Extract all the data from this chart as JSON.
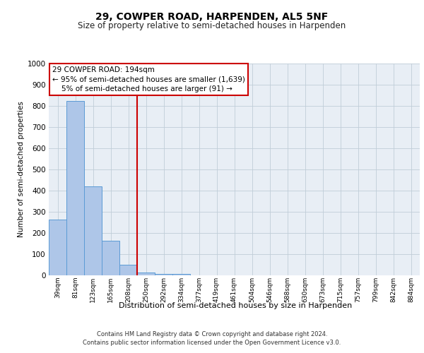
{
  "title1": "29, COWPER ROAD, HARPENDEN, AL5 5NF",
  "title2": "Size of property relative to semi-detached houses in Harpenden",
  "xlabel": "Distribution of semi-detached houses by size in Harpenden",
  "ylabel": "Number of semi-detached properties",
  "bar_color": "#aec6e8",
  "bar_edge_color": "#5b9bd5",
  "vline_color": "#cc0000",
  "vline_x_index": 4.5,
  "annotation_line1": "29 COWPER ROAD: 194sqm",
  "annotation_line2": "← 95% of semi-detached houses are smaller (1,639)",
  "annotation_line3": "    5% of semi-detached houses are larger (91) →",
  "annotation_box_edge": "#cc0000",
  "categories": [
    "39sqm",
    "81sqm",
    "123sqm",
    "165sqm",
    "208sqm",
    "250sqm",
    "292sqm",
    "334sqm",
    "377sqm",
    "419sqm",
    "461sqm",
    "504sqm",
    "546sqm",
    "588sqm",
    "630sqm",
    "673sqm",
    "715sqm",
    "757sqm",
    "799sqm",
    "842sqm",
    "884sqm"
  ],
  "values": [
    265,
    825,
    420,
    165,
    50,
    15,
    7,
    7,
    0,
    0,
    0,
    0,
    0,
    0,
    0,
    0,
    0,
    0,
    0,
    0,
    0
  ],
  "ylim_max": 1000,
  "background_color": "#e8eef5",
  "footer1": "Contains HM Land Registry data © Crown copyright and database right 2024.",
  "footer2": "Contains public sector information licensed under the Open Government Licence v3.0.",
  "title1_fontsize": 10,
  "title2_fontsize": 8.5,
  "ylabel_fontsize": 7.5,
  "xlabel_fontsize": 8,
  "tick_fontsize": 6.5,
  "ytick_fontsize": 7.5,
  "annotation_fontsize": 7.5,
  "footer_fontsize": 6
}
